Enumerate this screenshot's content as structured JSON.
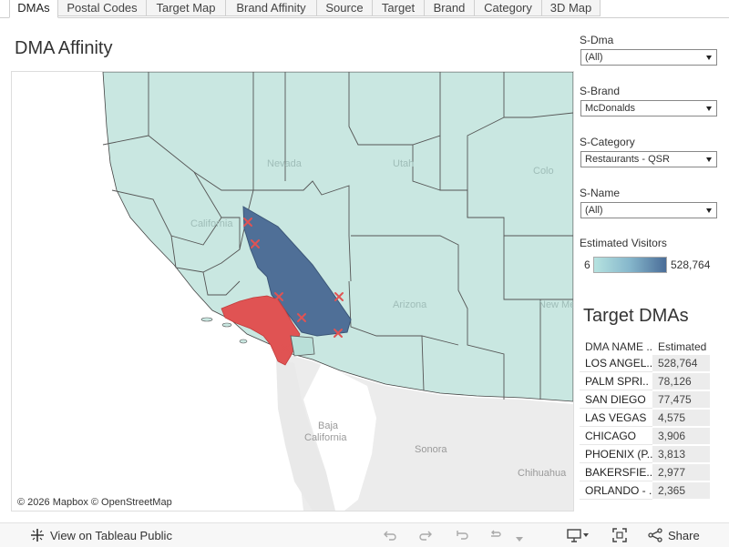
{
  "tabs": [
    {
      "label": "DMAs",
      "active": true
    },
    {
      "label": "Postal Codes",
      "active": false
    },
    {
      "label": "Target Map",
      "active": false
    },
    {
      "label": "Brand Affinity",
      "active": false
    },
    {
      "label": "Source",
      "active": false
    },
    {
      "label": "Target",
      "active": false
    },
    {
      "label": "Brand",
      "active": false
    },
    {
      "label": "Category",
      "active": false
    },
    {
      "label": "3D Map",
      "active": false
    }
  ],
  "title": "DMA Affinity",
  "map": {
    "labels": {
      "nevada": "Nevada",
      "utah": "Utah",
      "colorado": "Colo",
      "california": "California",
      "arizona": "Arizona",
      "new_mexico": "New Mexico",
      "baja_line1": "Baja",
      "baja_line2": "California",
      "sonora": "Sonora",
      "chihuahua": "Chihuahua"
    },
    "attribution": "© 2026 Mapbox  © OpenStreetMap",
    "colors": {
      "base": "#c9e7e1",
      "high": "#4f6f97",
      "target": "#e05353",
      "land_other": "#ececec",
      "water": "#ffffff"
    }
  },
  "filters": [
    {
      "label": "S-Dma",
      "value": "(All)"
    },
    {
      "label": "S-Brand",
      "value": "McDonalds"
    },
    {
      "label": "S-Category",
      "value": "Restaurants - QSR"
    },
    {
      "label": "S-Name",
      "value": "(All)"
    }
  ],
  "legend": {
    "title": "Estimated Visitors",
    "min": "6",
    "max": "528,764"
  },
  "target_dmas": {
    "title": "Target DMAs",
    "columns": [
      "DMA NAME ..",
      "Estimated"
    ],
    "rows": [
      {
        "name": "LOS ANGEL..",
        "value": "528,764"
      },
      {
        "name": "PALM SPRI..",
        "value": "78,126"
      },
      {
        "name": "SAN DIEGO",
        "value": "77,475"
      },
      {
        "name": "LAS VEGAS",
        "value": "4,575"
      },
      {
        "name": "CHICAGO",
        "value": "3,906"
      },
      {
        "name": "PHOENIX (P..",
        "value": "3,813"
      },
      {
        "name": "BAKERSFIE..",
        "value": "2,977"
      },
      {
        "name": "ORLANDO - ..",
        "value": "2,365"
      }
    ]
  },
  "toolbar": {
    "view_label": "View on Tableau Public",
    "share_label": "Share"
  }
}
